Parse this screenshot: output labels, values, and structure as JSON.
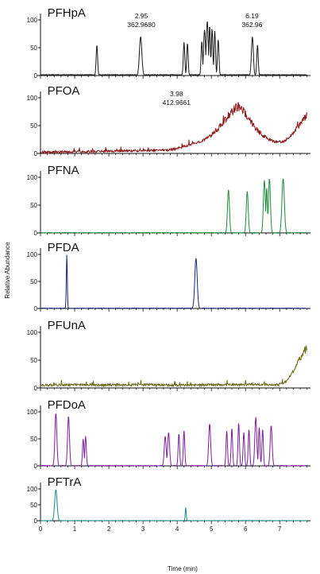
{
  "chart_data": {
    "type": "line",
    "ylabel": "Relative Abundance",
    "xlabel": "Time (min)",
    "xlim": [
      0,
      7.9
    ],
    "ylim": [
      0,
      100
    ],
    "x_ticks": [
      "0",
      "1",
      "2",
      "3",
      "4",
      "5",
      "6",
      "7"
    ],
    "y_ticks": [
      "0",
      "50",
      "100"
    ],
    "panels": [
      {
        "name": "PFHpA",
        "color": "#1a1a1a",
        "baseline": 1,
        "peaks": [
          [
            1.65,
            55,
            0.03
          ],
          [
            2.93,
            70,
            0.05
          ],
          [
            4.2,
            60,
            0.03
          ],
          [
            4.3,
            58,
            0.03
          ],
          [
            4.72,
            62,
            0.03
          ],
          [
            4.8,
            82,
            0.04
          ],
          [
            4.88,
            98,
            0.04
          ],
          [
            4.95,
            90,
            0.03
          ],
          [
            5.02,
            85,
            0.03
          ],
          [
            5.1,
            80,
            0.03
          ],
          [
            5.2,
            65,
            0.03
          ],
          [
            6.2,
            70,
            0.04
          ],
          [
            6.35,
            55,
            0.03
          ]
        ],
        "profile": [],
        "annotations": [
          {
            "x": 2.95,
            "lines": [
              "2.95",
              "362.9680"
            ]
          },
          {
            "x": 6.19,
            "lines": [
              "6.19",
              "362.96"
            ]
          }
        ]
      },
      {
        "name": "PFOA",
        "color": "#8b1a1a",
        "baseline": 2,
        "peaks": [],
        "profile": [
          [
            0,
            2
          ],
          [
            1.0,
            3
          ],
          [
            2.0,
            4
          ],
          [
            3.0,
            5
          ],
          [
            3.7,
            6
          ],
          [
            4.0,
            9
          ],
          [
            4.3,
            14
          ],
          [
            4.7,
            22
          ],
          [
            5.0,
            32
          ],
          [
            5.3,
            52
          ],
          [
            5.55,
            72
          ],
          [
            5.75,
            84
          ],
          [
            5.9,
            80
          ],
          [
            6.1,
            62
          ],
          [
            6.3,
            44
          ],
          [
            6.5,
            33
          ],
          [
            6.7,
            24
          ],
          [
            6.9,
            20
          ],
          [
            7.1,
            21
          ],
          [
            7.3,
            30
          ],
          [
            7.5,
            45
          ],
          [
            7.7,
            62
          ],
          [
            7.8,
            68
          ]
        ],
        "annotations": [
          {
            "x": 3.98,
            "lines": [
              "3.98",
              "412.9661"
            ]
          }
        ]
      },
      {
        "name": "PFNA",
        "color": "#1e8c3a",
        "baseline": 0,
        "peaks": [
          [
            5.5,
            78,
            0.04
          ],
          [
            6.05,
            75,
            0.04
          ],
          [
            6.55,
            95,
            0.04
          ],
          [
            6.62,
            82,
            0.03
          ],
          [
            6.7,
            98,
            0.04
          ],
          [
            7.1,
            98,
            0.05
          ]
        ],
        "profile": [],
        "annotations": []
      },
      {
        "name": "PFDA",
        "color": "#1a237e",
        "baseline": 0,
        "peaks": [
          [
            0.77,
            100,
            0.02
          ],
          [
            4.55,
            93,
            0.05
          ]
        ],
        "profile": [],
        "annotations": []
      },
      {
        "name": "PFUnA",
        "color": "#6b6b1a",
        "baseline": 2,
        "peaks": [],
        "profile": [
          [
            0,
            5
          ],
          [
            1.0,
            6
          ],
          [
            2.0,
            5
          ],
          [
            3.0,
            6
          ],
          [
            4.0,
            5
          ],
          [
            5.0,
            6
          ],
          [
            6.0,
            6
          ],
          [
            7.0,
            6
          ],
          [
            7.2,
            12
          ],
          [
            7.4,
            30
          ],
          [
            7.55,
            48
          ],
          [
            7.7,
            65
          ],
          [
            7.8,
            70
          ]
        ],
        "annotations": []
      },
      {
        "name": "PFDoA",
        "color": "#7b1f9c",
        "baseline": 0,
        "peaks": [
          [
            0.45,
            98,
            0.04
          ],
          [
            0.82,
            92,
            0.04
          ],
          [
            1.25,
            50,
            0.03
          ],
          [
            1.32,
            55,
            0.03
          ],
          [
            3.65,
            55,
            0.04
          ],
          [
            3.75,
            62,
            0.04
          ],
          [
            4.05,
            60,
            0.03
          ],
          [
            4.2,
            65,
            0.03
          ],
          [
            4.95,
            78,
            0.04
          ],
          [
            5.45,
            65,
            0.03
          ],
          [
            5.6,
            70,
            0.03
          ],
          [
            5.8,
            80,
            0.03
          ],
          [
            5.95,
            62,
            0.03
          ],
          [
            6.1,
            68,
            0.03
          ],
          [
            6.3,
            90,
            0.04
          ],
          [
            6.4,
            72,
            0.03
          ],
          [
            6.5,
            68,
            0.03
          ],
          [
            6.75,
            75,
            0.04
          ]
        ],
        "profile": [],
        "annotations": []
      },
      {
        "name": "PFTrA",
        "color": "#1a8c8c",
        "baseline": 0,
        "peaks": [
          [
            0.45,
            98,
            0.05
          ],
          [
            4.25,
            42,
            0.02
          ]
        ],
        "profile": [],
        "annotations": []
      }
    ]
  }
}
